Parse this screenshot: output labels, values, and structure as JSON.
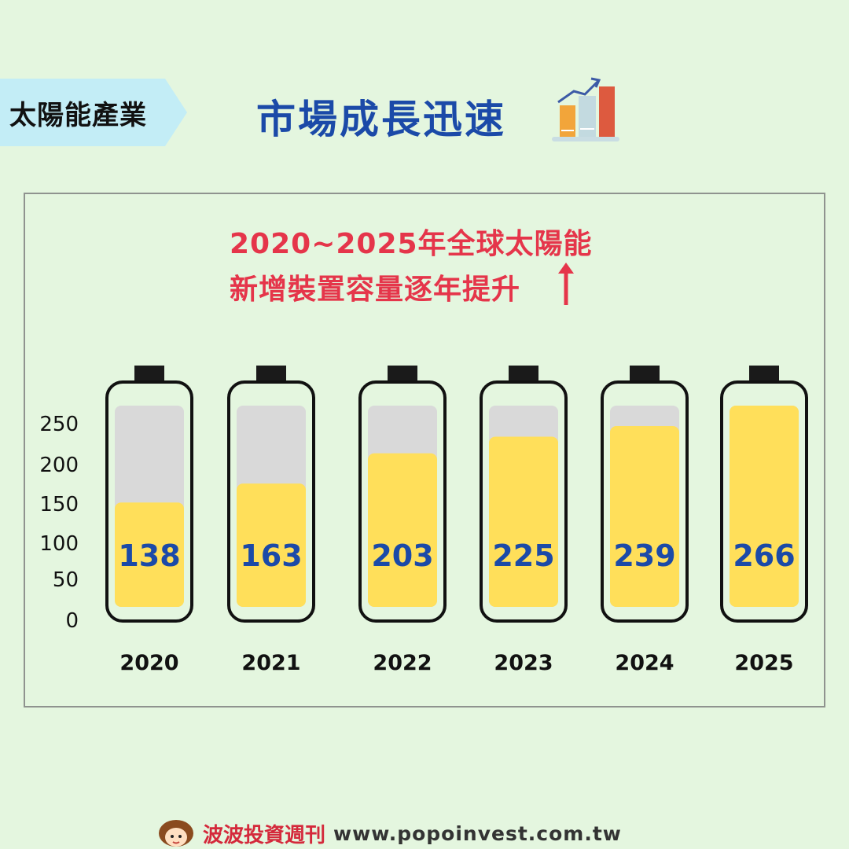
{
  "header": {
    "tag_label": "太陽能產業",
    "title": "市場成長迅速",
    "icon": "growth-chart-icon"
  },
  "chart_data": {
    "type": "bar",
    "title_line1": "2020~2025年全球太陽能",
    "title_line2": "新增裝置容量逐年提升",
    "categories": [
      "2020",
      "2021",
      "2022",
      "2023",
      "2024",
      "2025"
    ],
    "values": [
      138,
      163,
      203,
      225,
      239,
      266
    ],
    "yticks": [
      0,
      50,
      100,
      150,
      200,
      250
    ],
    "ylim": [
      0,
      266
    ],
    "xlabel": "",
    "ylabel": "",
    "grid": false,
    "colors": {
      "fill": "#ffdf5a",
      "empty": "#d9d9d9",
      "outline": "#111111",
      "value_text": "#1b4aa8",
      "title_text": "#e5354a"
    }
  },
  "footer": {
    "brand": "波波投資週刊",
    "url": "www.popoinvest.com.tw",
    "avatar_icon": "mascot-avatar-icon"
  }
}
